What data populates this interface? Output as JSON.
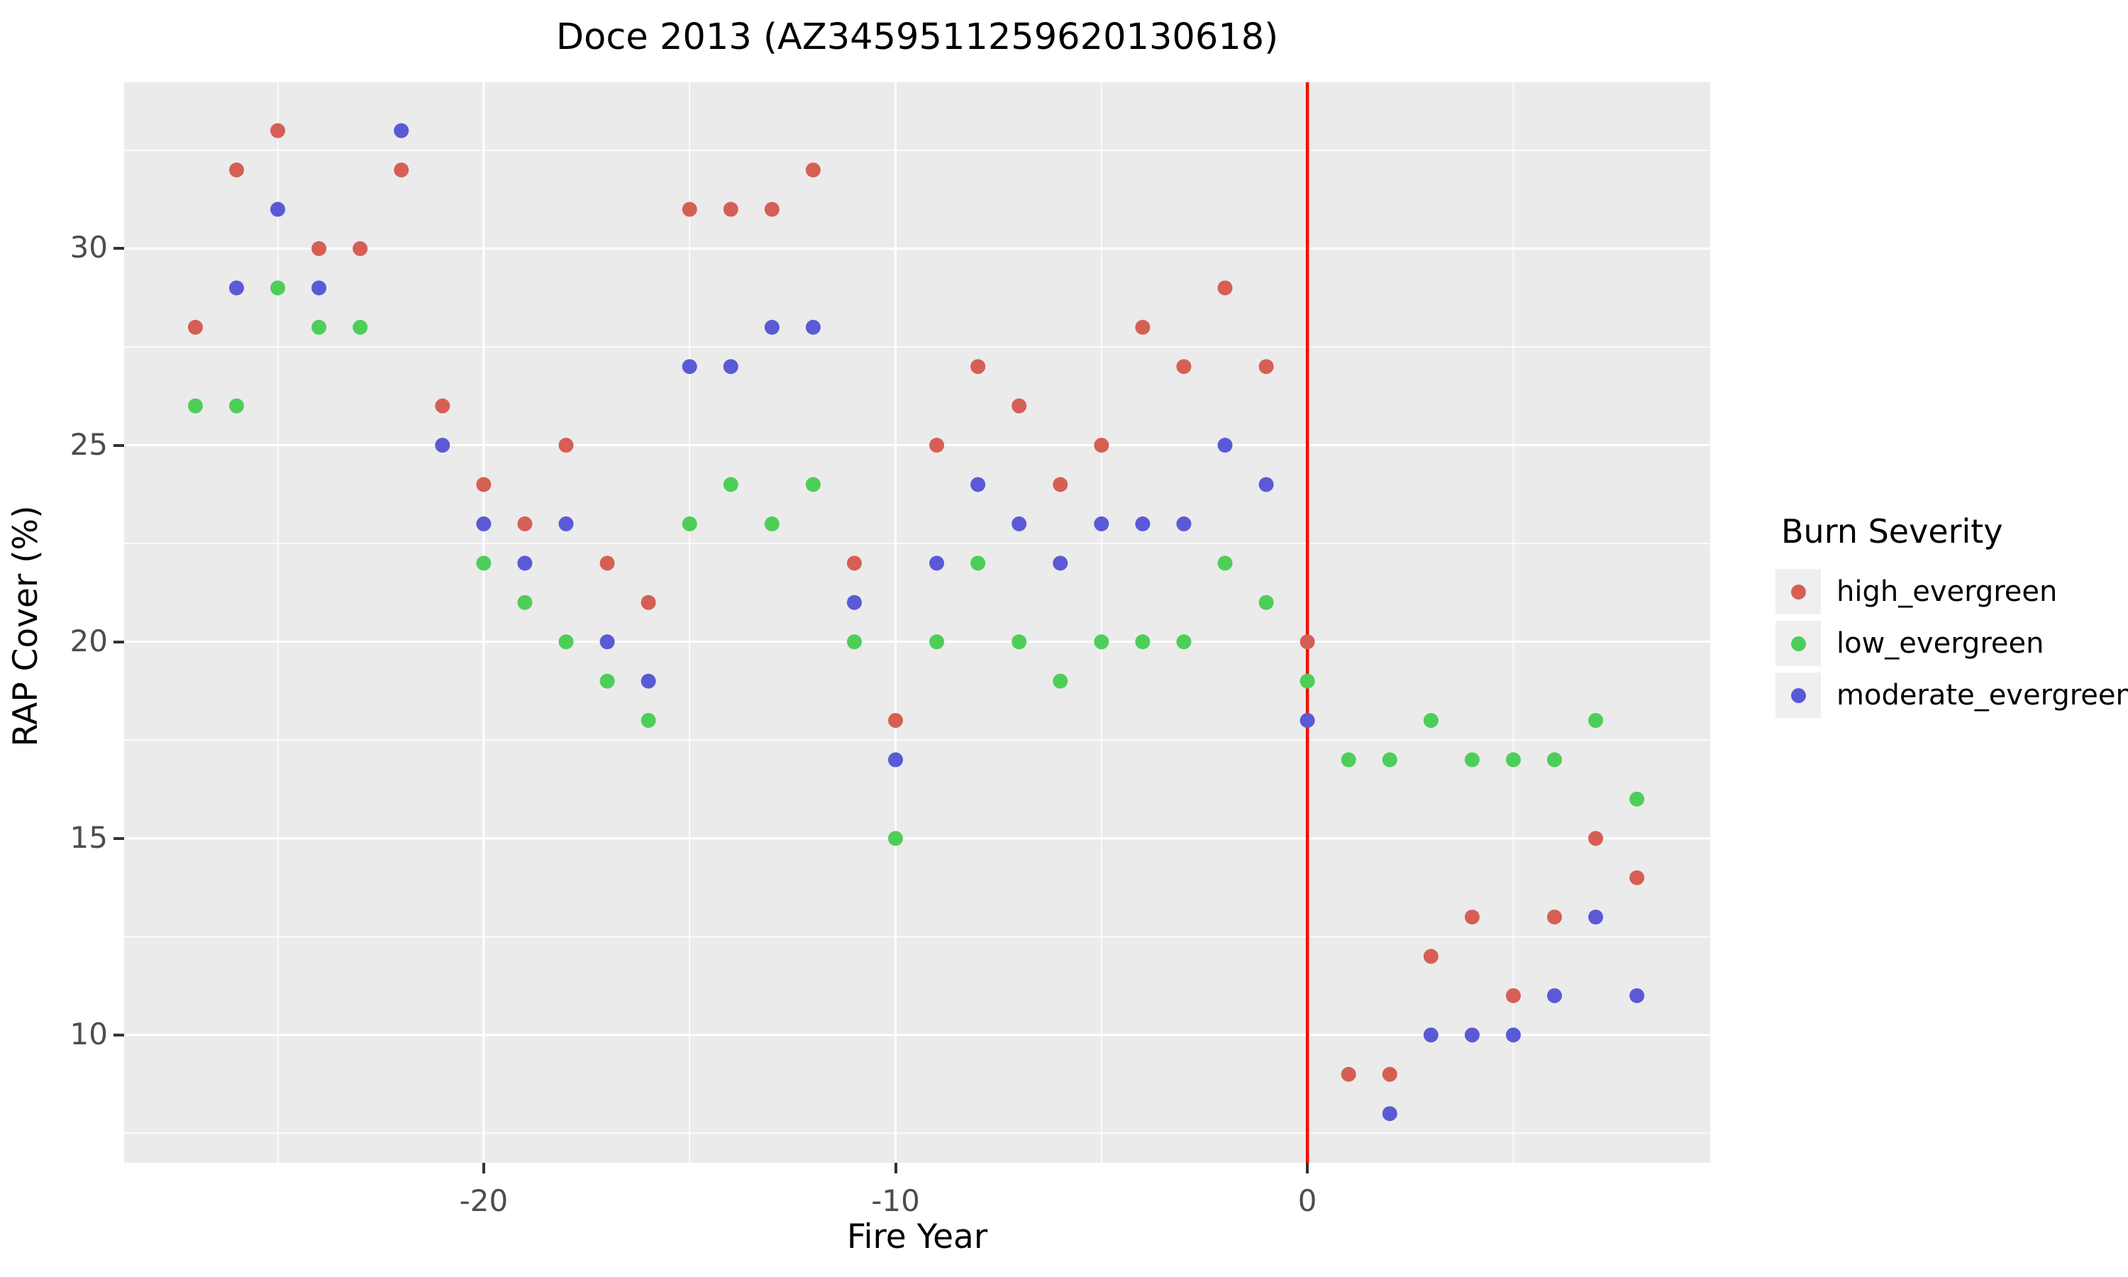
{
  "chart_data": {
    "type": "scatter",
    "title": "Doce 2013 (AZ3459511259620130618)",
    "xlabel": "Fire Year",
    "ylabel": "RAP Cover (%)",
    "xlim": [
      -28.73,
      9.78
    ],
    "ylim": [
      6.75,
      34.23
    ],
    "grid": "on",
    "panel_background": "#EBEBEB",
    "grid_color": "#FFFFFF",
    "tick_label_color": "#4D4D4D",
    "x_ticks": [
      {
        "value": -20,
        "label": "-20"
      },
      {
        "value": -10,
        "label": "-10"
      },
      {
        "value": 0,
        "label": "0"
      }
    ],
    "y_ticks": [
      {
        "value": 30,
        "label": "30"
      },
      {
        "value": 25,
        "label": "25"
      },
      {
        "value": 20,
        "label": "20"
      },
      {
        "value": 15,
        "label": "15"
      },
      {
        "value": 10,
        "label": "10"
      }
    ],
    "x_minor_gridlines": [
      -25,
      -15,
      -5,
      5
    ],
    "y_minor_gridlines": [
      7.5,
      12.5,
      17.5,
      22.5,
      27.5,
      32.5
    ],
    "vline": {
      "x": 0,
      "color": "#F30E00"
    },
    "point_radius": 10.5,
    "legend": {
      "title": "Burn Severity",
      "position": "right",
      "entries": [
        {
          "label": "high_evergreen",
          "color": "#D65F55"
        },
        {
          "label": "low_evergreen",
          "color": "#4DCE59"
        },
        {
          "label": "moderate_evergreen",
          "color": "#5A5AD6"
        }
      ]
    },
    "series": [
      {
        "name": "high_evergreen",
        "color": "#D65F55",
        "points": [
          [
            -27,
            28
          ],
          [
            -26,
            32
          ],
          [
            -25,
            33
          ],
          [
            -24,
            30
          ],
          [
            -23,
            30
          ],
          [
            -22,
            32
          ],
          [
            -21,
            26
          ],
          [
            -20,
            24
          ],
          [
            -19,
            23
          ],
          [
            -18,
            25
          ],
          [
            -17,
            22
          ],
          [
            -16,
            21
          ],
          [
            -15,
            31
          ],
          [
            -14,
            31
          ],
          [
            -13,
            31
          ],
          [
            -12,
            32
          ],
          [
            -11,
            22
          ],
          [
            -10,
            18
          ],
          [
            -9,
            25
          ],
          [
            -8,
            27
          ],
          [
            -7,
            26
          ],
          [
            -6,
            24
          ],
          [
            -5,
            25
          ],
          [
            -4,
            28
          ],
          [
            -3,
            27
          ],
          [
            -2,
            29
          ],
          [
            -1,
            27
          ],
          [
            0,
            20
          ],
          [
            1,
            9
          ],
          [
            2,
            9
          ],
          [
            3,
            12
          ],
          [
            4,
            13
          ],
          [
            5,
            11
          ],
          [
            6,
            13
          ],
          [
            7,
            15
          ],
          [
            8,
            14
          ]
        ]
      },
      {
        "name": "low_evergreen",
        "color": "#4DCE59",
        "points": [
          [
            -27,
            26
          ],
          [
            -26,
            26
          ],
          [
            -25,
            29
          ],
          [
            -24,
            28
          ],
          [
            -23,
            28
          ],
          [
            -20,
            22
          ],
          [
            -19,
            21
          ],
          [
            -18,
            20
          ],
          [
            -17,
            19
          ],
          [
            -16,
            18
          ],
          [
            -15,
            23
          ],
          [
            -14,
            24
          ],
          [
            -13,
            23
          ],
          [
            -12,
            24
          ],
          [
            -11,
            20
          ],
          [
            -10,
            15
          ],
          [
            -9,
            20
          ],
          [
            -8,
            22
          ],
          [
            -7,
            20
          ],
          [
            -6,
            19
          ],
          [
            -5,
            20
          ],
          [
            -4,
            20
          ],
          [
            -3,
            20
          ],
          [
            -2,
            22
          ],
          [
            -1,
            21
          ],
          [
            0,
            19
          ],
          [
            1,
            17
          ],
          [
            2,
            17
          ],
          [
            3,
            18
          ],
          [
            4,
            17
          ],
          [
            5,
            17
          ],
          [
            6,
            17
          ],
          [
            7,
            18
          ],
          [
            8,
            16
          ]
        ]
      },
      {
        "name": "moderate_evergreen",
        "color": "#5A5AD6",
        "points": [
          [
            -26,
            29
          ],
          [
            -25,
            31
          ],
          [
            -24,
            29
          ],
          [
            -22,
            33
          ],
          [
            -21,
            25
          ],
          [
            -20,
            23
          ],
          [
            -19,
            22
          ],
          [
            -18,
            23
          ],
          [
            -17,
            20
          ],
          [
            -16,
            19
          ],
          [
            -15,
            27
          ],
          [
            -14,
            27
          ],
          [
            -13,
            28
          ],
          [
            -12,
            28
          ],
          [
            -11,
            21
          ],
          [
            -10,
            17
          ],
          [
            -9,
            22
          ],
          [
            -8,
            24
          ],
          [
            -7,
            23
          ],
          [
            -6,
            22
          ],
          [
            -5,
            23
          ],
          [
            -4,
            23
          ],
          [
            -3,
            23
          ],
          [
            -2,
            25
          ],
          [
            -1,
            24
          ],
          [
            0,
            18
          ],
          [
            2,
            8
          ],
          [
            3,
            10
          ],
          [
            4,
            10
          ],
          [
            5,
            10
          ],
          [
            6,
            11
          ],
          [
            7,
            13
          ],
          [
            8,
            11
          ]
        ]
      }
    ]
  }
}
